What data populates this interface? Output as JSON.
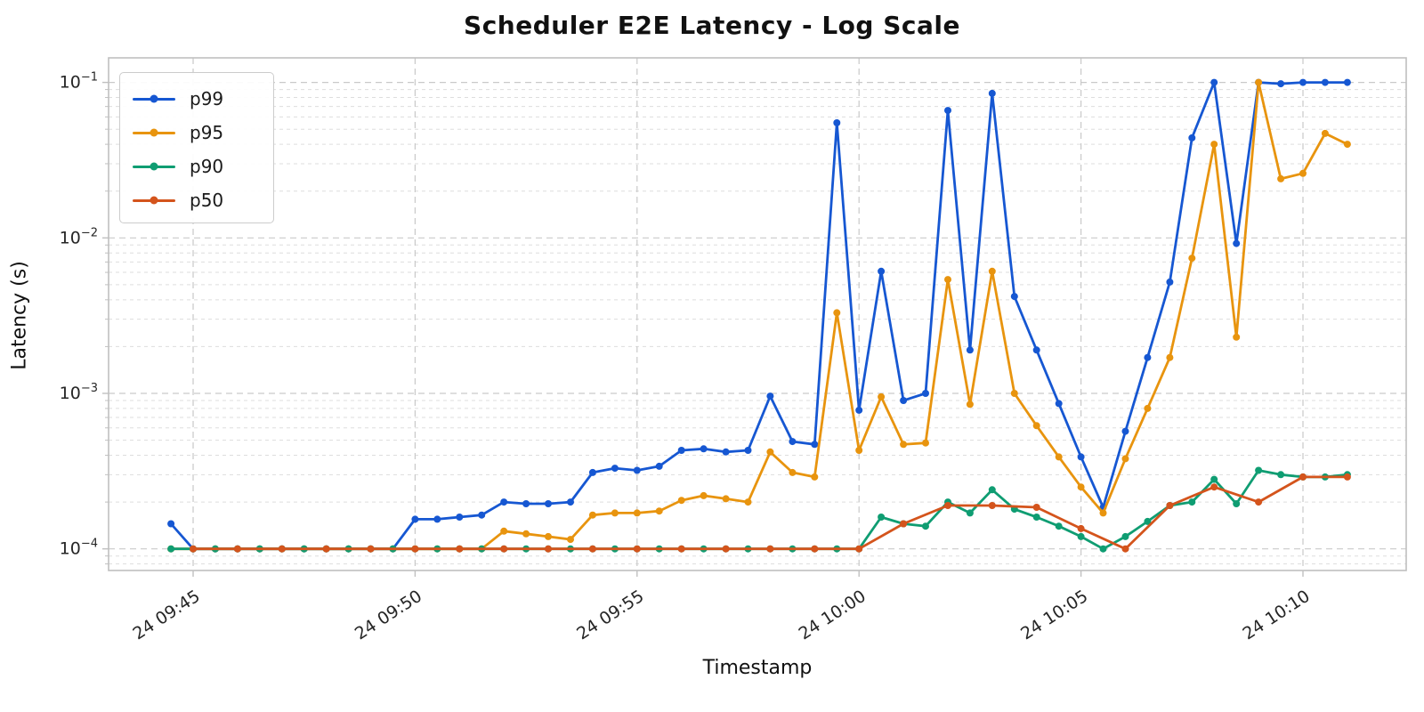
{
  "title": "Scheduler E2E Latency - Log Scale",
  "xlabel": "Timestamp",
  "ylabel": "Latency (s)",
  "chart_data": {
    "type": "line",
    "title": "Scheduler E2E Latency - Log Scale",
    "xlabel": "Timestamp",
    "ylabel": "Latency (s)",
    "y_scale": "log",
    "ylim": [
      7.3e-05,
      0.144
    ],
    "grid": "dashed major and minor horizontal, dashed vertical at labeled ticks",
    "legend_position": "upper left",
    "x_axis_start_time": "09:44:30",
    "x_tick_labels": [
      "24 09:45",
      "24 09:50",
      "24 09:55",
      "24 10:00",
      "24 10:05",
      "24 10:10"
    ],
    "y_tick_exponents": [
      -1,
      -2,
      -3,
      -4
    ],
    "series": [
      {
        "name": "p99",
        "color": "#1657d2",
        "start_offset_s": 0,
        "step_s": 30,
        "values": [
          0.000145,
          0.0001,
          0.0001,
          0.0001,
          0.0001,
          0.0001,
          0.0001,
          0.0001,
          0.0001,
          0.0001,
          0.0001,
          0.000155,
          0.000155,
          0.00016,
          0.000165,
          0.0002,
          0.000195,
          0.000195,
          0.0002,
          0.00031,
          0.00033,
          0.00032,
          0.00034,
          0.00043,
          0.00044,
          0.00042,
          0.00043,
          0.00096,
          0.00049,
          0.00047,
          0.055,
          0.00078,
          0.0061,
          0.0009,
          0.001,
          0.066,
          0.0019,
          0.085,
          0.0042,
          0.0019,
          0.00086,
          0.00039,
          0.000185,
          0.00057,
          0.0017,
          0.0052,
          0.044,
          0.1,
          0.0092,
          0.1,
          0.098,
          0.1,
          0.1,
          0.1
        ]
      },
      {
        "name": "p95",
        "color": "#e8940e",
        "start_offset_s": 0,
        "step_s": 30,
        "values": [
          0.0001,
          0.0001,
          0.0001,
          0.0001,
          0.0001,
          0.0001,
          0.0001,
          0.0001,
          0.0001,
          0.0001,
          0.0001,
          0.0001,
          0.0001,
          0.0001,
          0.0001,
          0.00013,
          0.000125,
          0.00012,
          0.000115,
          0.000165,
          0.00017,
          0.00017,
          0.000175,
          0.000205,
          0.00022,
          0.00021,
          0.0002,
          0.00042,
          0.00031,
          0.00029,
          0.0033,
          0.00043,
          0.00095,
          0.00047,
          0.00048,
          0.0054,
          0.00085,
          0.0061,
          0.001,
          0.00062,
          0.00039,
          0.00025,
          0.00017,
          0.00038,
          0.0008,
          0.0017,
          0.0074,
          0.04,
          0.0023,
          0.1,
          0.024,
          0.026,
          0.047,
          0.04
        ]
      },
      {
        "name": "p90",
        "color": "#0f9d72",
        "start_offset_s": 0,
        "step_s": 30,
        "values": [
          0.0001,
          0.0001,
          0.0001,
          0.0001,
          0.0001,
          0.0001,
          0.0001,
          0.0001,
          0.0001,
          0.0001,
          0.0001,
          0.0001,
          0.0001,
          0.0001,
          0.0001,
          0.0001,
          0.0001,
          0.0001,
          0.0001,
          0.0001,
          0.0001,
          0.0001,
          0.0001,
          0.0001,
          0.0001,
          0.0001,
          0.0001,
          0.0001,
          0.0001,
          0.0001,
          0.0001,
          0.0001,
          0.00016,
          0.000145,
          0.00014,
          0.0002,
          0.00017,
          0.00024,
          0.00018,
          0.00016,
          0.00014,
          0.00012,
          0.0001,
          0.00012,
          0.00015,
          0.00019,
          0.0002,
          0.00028,
          0.000195,
          0.00032,
          0.0003,
          0.00029,
          0.00029,
          0.0003
        ]
      },
      {
        "name": "p50",
        "color": "#d4541c",
        "start_offset_s": 30,
        "step_s": 60,
        "values": [
          0.0001,
          0.0001,
          0.0001,
          0.0001,
          0.0001,
          0.0001,
          0.0001,
          0.0001,
          0.0001,
          0.0001,
          0.0001,
          0.0001,
          0.0001,
          0.0001,
          0.0001,
          0.0001,
          0.000145,
          0.00019,
          0.00019,
          0.000185,
          0.000135,
          0.0001,
          0.00019,
          0.00025,
          0.0002,
          0.00029,
          0.00029
        ]
      }
    ]
  }
}
